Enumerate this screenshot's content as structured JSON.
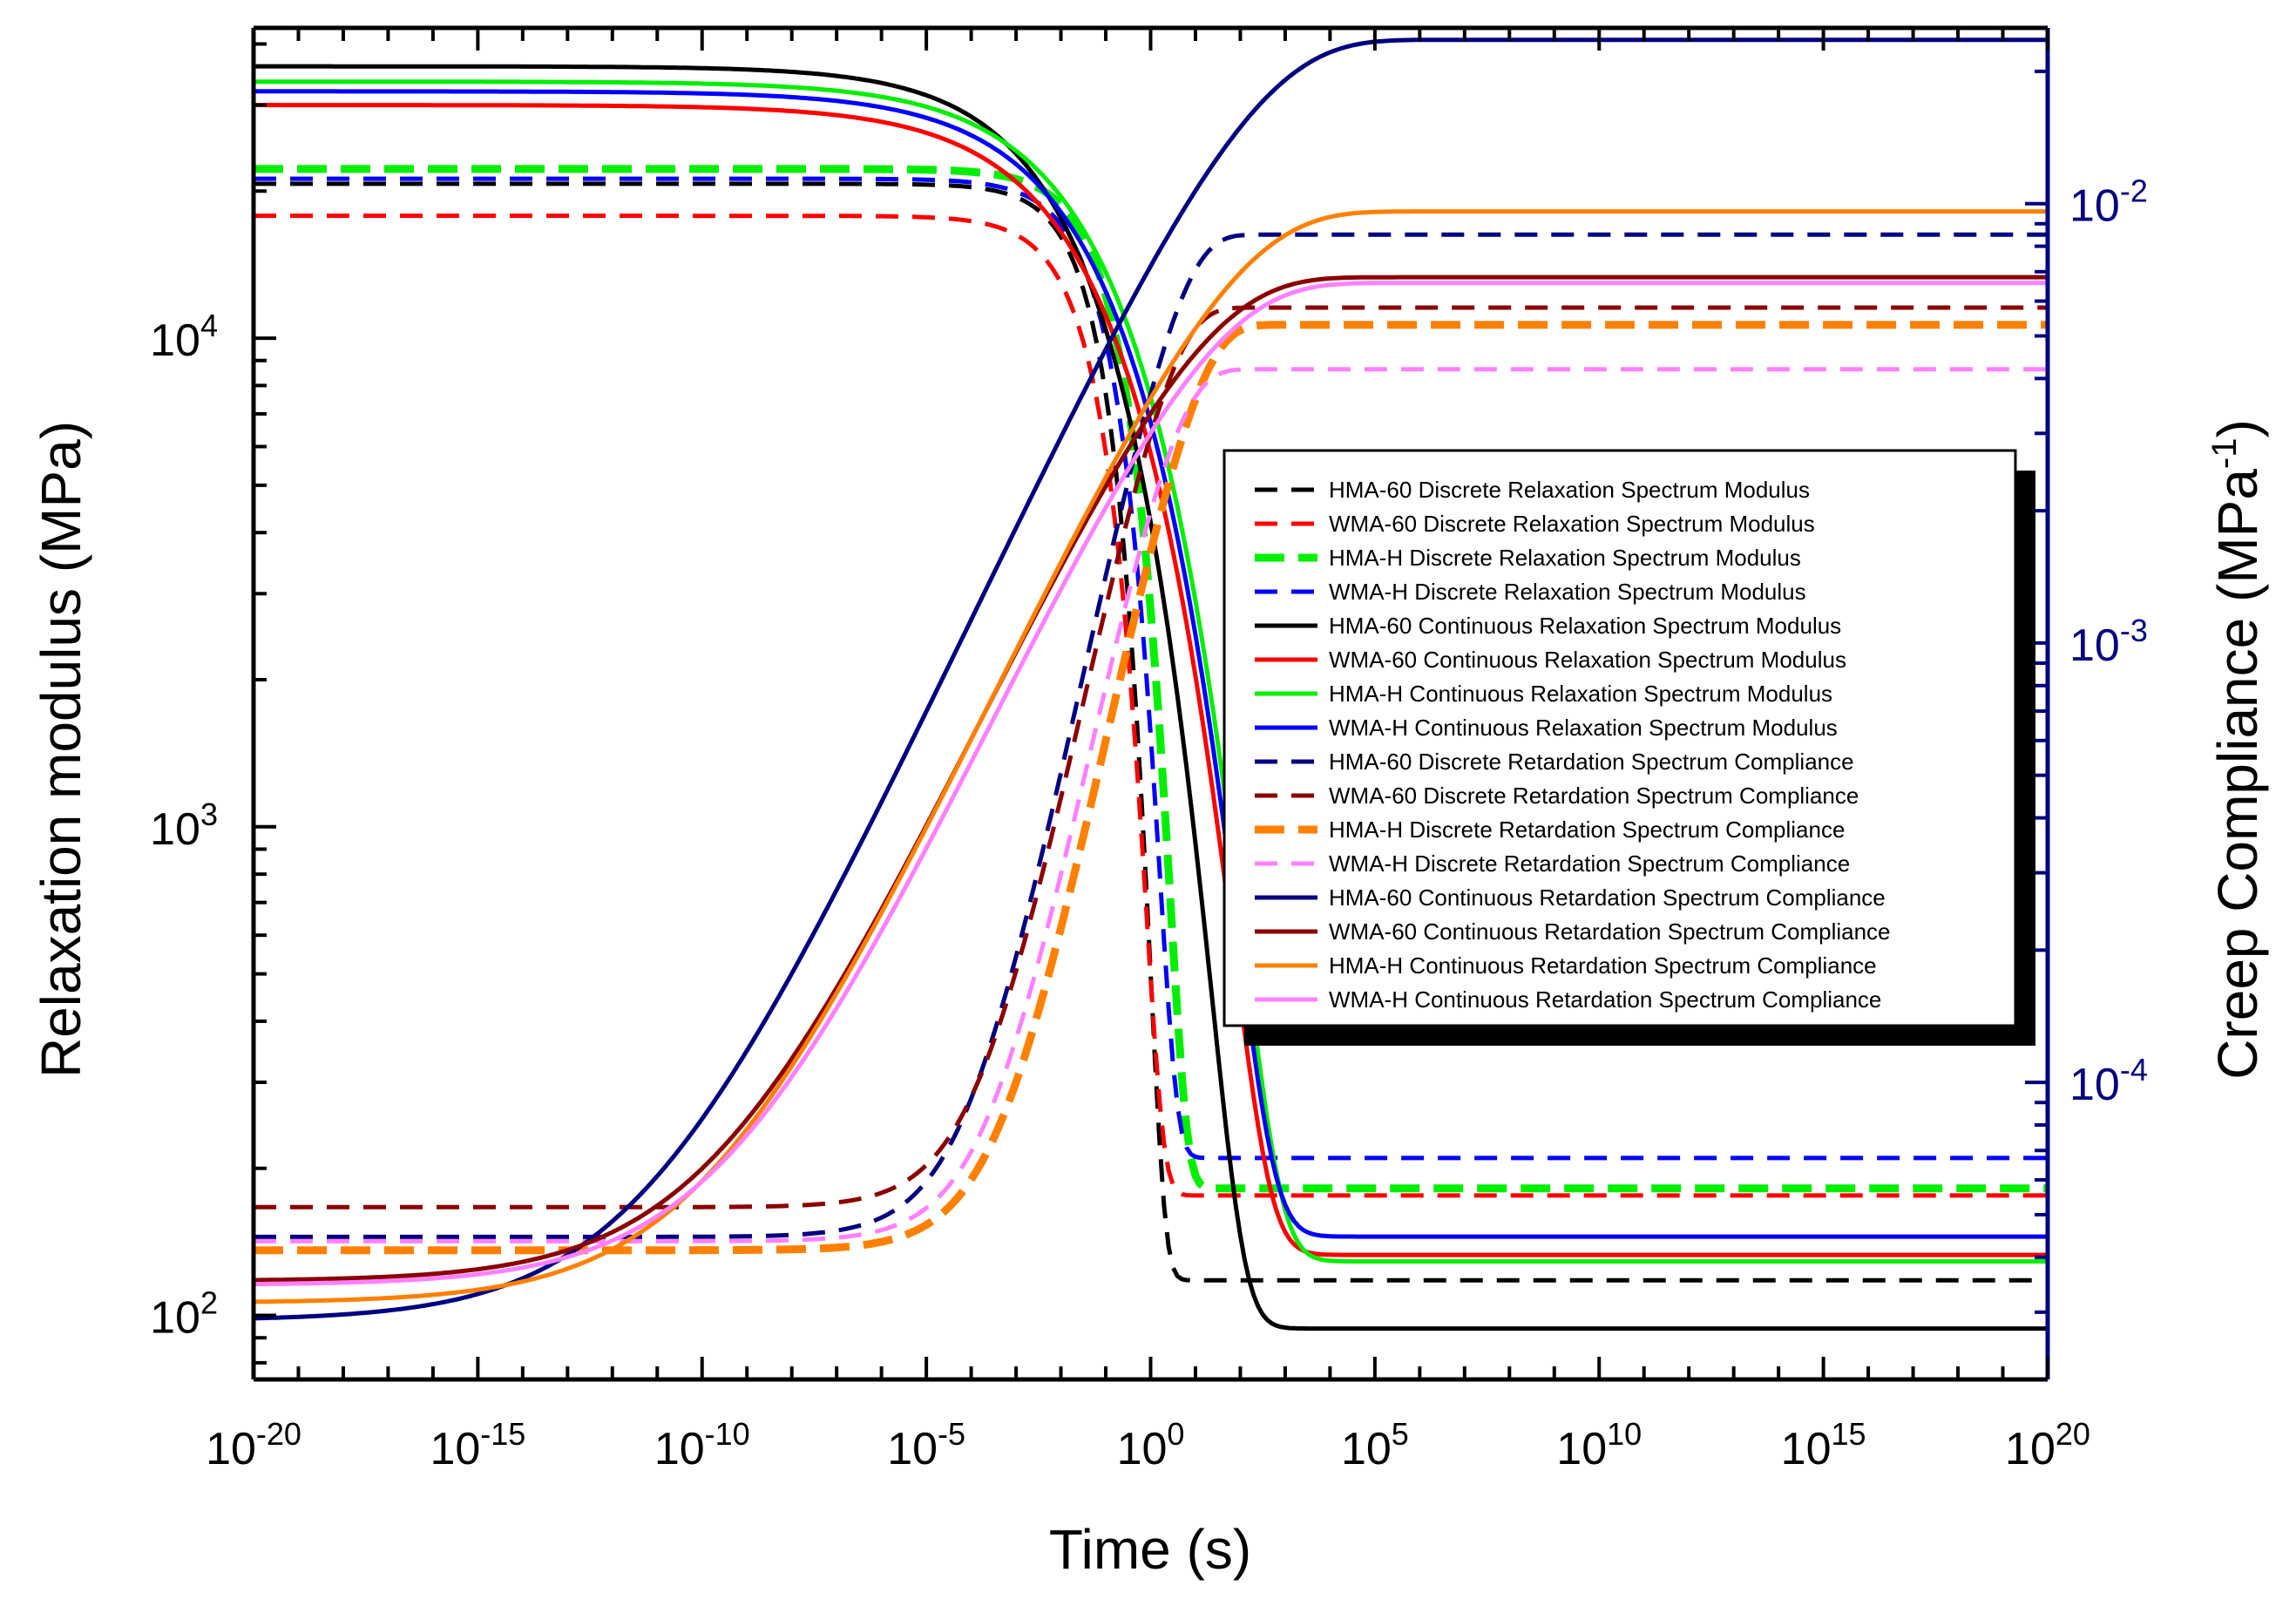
{
  "chart_data": {
    "type": "line",
    "title": "",
    "xlabel": "Time (s)",
    "ylabel_left": "Relaxation modulus (MPa)",
    "ylabel_right": "Creep Compliance (MPa",
    "ylabel_right_sup": "-1",
    "ylabel_right_close": ")",
    "xscale": "log",
    "yscale_left": "log",
    "yscale_right": "log",
    "xlim_log10": [
      -20,
      20
    ],
    "ylim_left_log10": [
      1.869,
      4.635
    ],
    "ylim_right_log10": [
      -4.676,
      -1.6
    ],
    "grid": false,
    "legend_position": "center-right",
    "x_ticks": [
      {
        "base": "10",
        "exp": "-20",
        "pos": -20
      },
      {
        "base": "10",
        "exp": "-15",
        "pos": -15
      },
      {
        "base": "10",
        "exp": "-10",
        "pos": -10
      },
      {
        "base": "10",
        "exp": "-5",
        "pos": -5
      },
      {
        "base": "10",
        "exp": "0",
        "pos": 0
      },
      {
        "base": "10",
        "exp": "5",
        "pos": 5
      },
      {
        "base": "10",
        "exp": "10",
        "pos": 10
      },
      {
        "base": "10",
        "exp": "15",
        "pos": 15
      },
      {
        "base": "10",
        "exp": "20",
        "pos": 20
      }
    ],
    "y_ticks_left": [
      {
        "base": "10",
        "exp": "2",
        "pos": 2
      },
      {
        "base": "10",
        "exp": "3",
        "pos": 3
      },
      {
        "base": "10",
        "exp": "4",
        "pos": 4
      }
    ],
    "y_ticks_right": [
      {
        "base": "10",
        "exp": "-4",
        "pos": -4
      },
      {
        "base": "10",
        "exp": "-3",
        "pos": -3
      },
      {
        "base": "10",
        "exp": "-2",
        "pos": -2
      }
    ],
    "series": [
      {
        "name": "HMA-60 Discrete Relaxation Spectrum Modulus",
        "axis": "left",
        "color": "#000000",
        "style": "dash",
        "width": "normal",
        "E0": 20700,
        "Einf": 118,
        "tau_log10": -1.0,
        "beta": 0.6
      },
      {
        "name": "WMA-60 Discrete Relaxation Spectrum Modulus",
        "axis": "left",
        "color": "#ff0000",
        "style": "dash",
        "width": "normal",
        "E0": 17800,
        "Einf": 176,
        "tau_log10": -1.1,
        "beta": 0.55
      },
      {
        "name": "HMA-H Discrete Relaxation Spectrum Modulus",
        "axis": "left",
        "color": "#00ee00",
        "style": "dash",
        "width": "thick",
        "E0": 22200,
        "Einf": 182,
        "tau_log10": -0.6,
        "beta": 0.55
      },
      {
        "name": "WMA-H Discrete Relaxation Spectrum Modulus",
        "axis": "left",
        "color": "#0000ff",
        "style": "dash",
        "width": "normal",
        "E0": 21200,
        "Einf": 210,
        "tau_log10": -0.8,
        "beta": 0.55
      },
      {
        "name": "HMA-60 Continuous Relaxation Spectrum Modulus",
        "axis": "left",
        "color": "#000000",
        "style": "solid",
        "width": "normal",
        "E0": 36000,
        "Einf": 94,
        "tau_log10": -1.4,
        "beta": 0.24
      },
      {
        "name": "WMA-60 Continuous Relaxation Spectrum Modulus",
        "axis": "left",
        "color": "#ff0000",
        "style": "solid",
        "width": "normal",
        "E0": 30000,
        "Einf": 133,
        "tau_log10": -1.0,
        "beta": 0.22
      },
      {
        "name": "HMA-H Continuous Relaxation Spectrum Modulus",
        "axis": "left",
        "color": "#00ee00",
        "style": "solid",
        "width": "normal",
        "E0": 33500,
        "Einf": 129,
        "tau_log10": -0.8,
        "beta": 0.22
      },
      {
        "name": "WMA-H Continuous Relaxation Spectrum Modulus",
        "axis": "left",
        "color": "#0000ff",
        "style": "solid",
        "width": "normal",
        "E0": 32000,
        "Einf": 145,
        "tau_log10": -0.9,
        "beta": 0.22
      },
      {
        "name": "HMA-60 Discrete Retardation Spectrum Compliance",
        "axis": "right",
        "color": "#000080",
        "style": "dash",
        "width": "normal",
        "J0": 4.45e-05,
        "Jinf": 0.0085,
        "tau_log10": 0.5,
        "beta": 0.5
      },
      {
        "name": "WMA-60 Discrete Retardation Spectrum Compliance",
        "axis": "right",
        "color": "#8b0000",
        "style": "dash",
        "width": "normal",
        "J0": 5.2e-05,
        "Jinf": 0.0058,
        "tau_log10": 0.3,
        "beta": 0.5
      },
      {
        "name": "HMA-H Discrete Retardation Spectrum Compliance",
        "axis": "right",
        "color": "#ff8000",
        "style": "dash",
        "width": "thick",
        "J0": 4.15e-05,
        "Jinf": 0.0053,
        "tau_log10": 0.9,
        "beta": 0.5
      },
      {
        "name": "WMA-H Discrete Retardation Spectrum Compliance",
        "axis": "right",
        "color": "#ff80ff",
        "style": "dash",
        "width": "normal",
        "J0": 4.35e-05,
        "Jinf": 0.0042,
        "tau_log10": 0.4,
        "beta": 0.5
      },
      {
        "name": "HMA-60 Continuous  Retardation Spectrum Compliance",
        "axis": "right",
        "color": "#000080",
        "style": "solid",
        "width": "normal",
        "J0": 2.87e-05,
        "Jinf": 0.0236,
        "tau_log10": 2.0,
        "beta": 0.22
      },
      {
        "name": "WMA-60 Continuous  Retardation Spectrum Compliance",
        "axis": "right",
        "color": "#8b0000",
        "style": "solid",
        "width": "normal",
        "J0": 3.53e-05,
        "Jinf": 0.0068,
        "tau_log10": 0.8,
        "beta": 0.22
      },
      {
        "name": "HMA-H Continuous  Retardation Spectrum Compliance",
        "axis": "right",
        "color": "#ff8000",
        "style": "solid",
        "width": "normal",
        "J0": 3.15e-05,
        "Jinf": 0.0096,
        "tau_log10": 1.5,
        "beta": 0.22
      },
      {
        "name": "WMA-H Continuous  Retardation Spectrum Compliance",
        "axis": "right",
        "color": "#ff80ff",
        "style": "solid",
        "width": "normal",
        "J0": 3.46e-05,
        "Jinf": 0.0066,
        "tau_log10": 1.0,
        "beta": 0.22
      }
    ]
  }
}
